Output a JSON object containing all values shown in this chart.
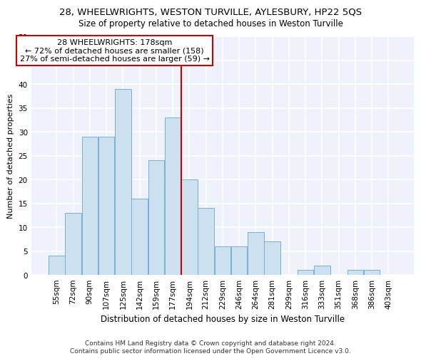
{
  "title": "28, WHEELWRIGHTS, WESTON TURVILLE, AYLESBURY, HP22 5QS",
  "subtitle": "Size of property relative to detached houses in Weston Turville",
  "xlabel": "Distribution of detached houses by size in Weston Turville",
  "ylabel": "Number of detached properties",
  "categories": [
    "55sqm",
    "72sqm",
    "90sqm",
    "107sqm",
    "125sqm",
    "142sqm",
    "159sqm",
    "177sqm",
    "194sqm",
    "212sqm",
    "229sqm",
    "246sqm",
    "264sqm",
    "281sqm",
    "299sqm",
    "316sqm",
    "333sqm",
    "351sqm",
    "368sqm",
    "386sqm",
    "403sqm"
  ],
  "values": [
    4,
    13,
    29,
    29,
    39,
    16,
    24,
    33,
    20,
    14,
    6,
    6,
    9,
    7,
    0,
    1,
    2,
    0,
    1,
    1,
    0
  ],
  "bar_color": "#cce0f0",
  "bar_edgecolor": "#7ab0d4",
  "vline_x_index": 7,
  "vline_color": "#cc0000",
  "annotation_title": "28 WHEELWRIGHTS: 178sqm",
  "annotation_line2": "← 72% of detached houses are smaller (158)",
  "annotation_line3": "27% of semi-detached houses are larger (59) →",
  "annotation_box_edgecolor": "#cc0000",
  "annotation_box_facecolor": "#ffffff",
  "ylim": [
    0,
    50
  ],
  "yticks": [
    0,
    5,
    10,
    15,
    20,
    25,
    30,
    35,
    40,
    45,
    50
  ],
  "background_color": "#eef2fa",
  "grid_color": "#ffffff",
  "footer_line1": "Contains HM Land Registry data © Crown copyright and database right 2024.",
  "footer_line2": "Contains public sector information licensed under the Open Government Licence v3.0.",
  "title_fontsize": 9.5,
  "subtitle_fontsize": 8.5,
  "xlabel_fontsize": 8.5,
  "ylabel_fontsize": 8,
  "tick_fontsize": 7.5,
  "annotation_fontsize": 8,
  "footer_fontsize": 6.5
}
